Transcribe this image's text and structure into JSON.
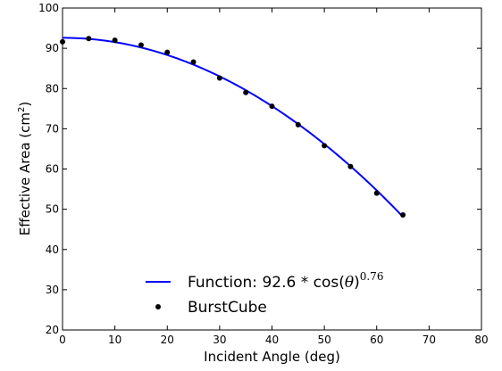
{
  "chart_data": {
    "type": "scatter",
    "xlabel": "Incident Angle (deg)",
    "ylabel_main": "Effective Area (cm",
    "ylabel_sup": "2",
    "ylabel_close": ")",
    "xlim": [
      0,
      80
    ],
    "ylim": [
      20,
      100
    ],
    "x_ticks": [
      "0",
      "10",
      "20",
      "30",
      "40",
      "50",
      "60",
      "70",
      "80"
    ],
    "y_ticks": [
      "20",
      "30",
      "40",
      "50",
      "60",
      "70",
      "80",
      "90",
      "100"
    ],
    "grid": false,
    "legend_placement": "lower-center",
    "series": [
      {
        "name": "Function: 92.6 * cos(θ)^0.76",
        "kind": "line",
        "color": "#0000ff",
        "function": {
          "amplitude": 92.6,
          "exponent": 0.76,
          "x_range": [
            0,
            65
          ]
        }
      },
      {
        "name": "BurstCube",
        "kind": "scatter",
        "color": "#000000",
        "x": [
          0,
          5,
          10,
          15,
          20,
          25,
          30,
          35,
          40,
          45,
          50,
          55,
          60,
          65
        ],
        "y": [
          91.6,
          92.4,
          92.0,
          90.8,
          89.0,
          86.6,
          82.6,
          79.0,
          75.6,
          71.0,
          65.8,
          60.6,
          54.0,
          48.6
        ]
      }
    ],
    "legend": {
      "function_prefix": "Function: 92.6 * cos(",
      "function_theta": "θ",
      "function_close": ")",
      "function_exp": "0.76",
      "scatter_label": "BurstCube"
    }
  }
}
